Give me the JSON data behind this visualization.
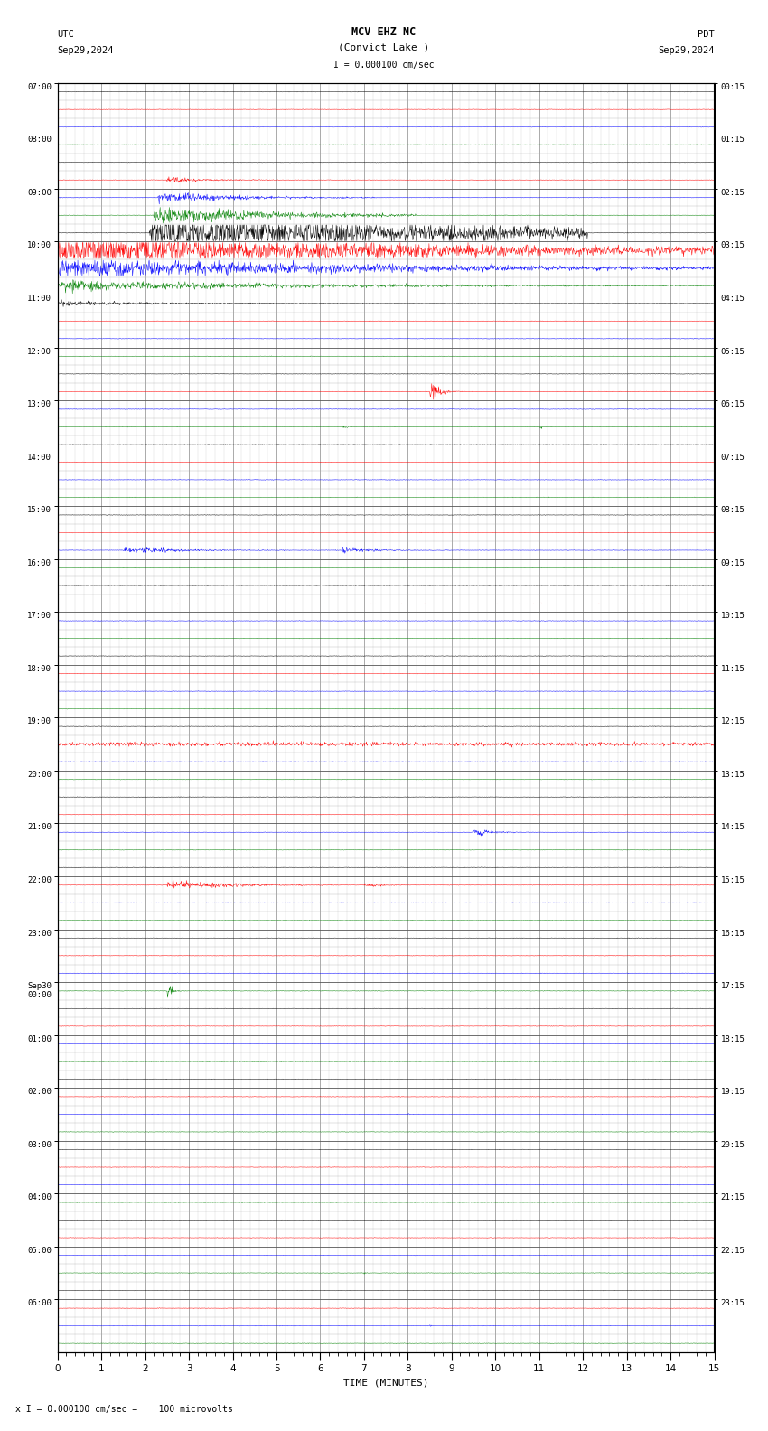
{
  "title_line1": "MCV EHZ NC",
  "title_line2": "(Convict Lake )",
  "scale_label": "I = 0.000100 cm/sec",
  "utc_label": "UTC",
  "pdt_label": "PDT",
  "date_left": "Sep29,2024",
  "date_right": "Sep29,2024",
  "xlabel": "TIME (MINUTES)",
  "bottom_note": "x I = 0.000100 cm/sec =    100 microvolts",
  "bg_color": "#ffffff",
  "figsize": [
    8.5,
    15.84
  ],
  "dpi": 100,
  "utc_labels": [
    "07:00",
    "08:00",
    "09:00",
    "10:00",
    "11:00",
    "12:00",
    "13:00",
    "14:00",
    "15:00",
    "16:00",
    "17:00",
    "18:00",
    "19:00",
    "20:00",
    "21:00",
    "22:00",
    "23:00",
    "Sep30\n00:00",
    "01:00",
    "02:00",
    "03:00",
    "04:00",
    "05:00",
    "06:00"
  ],
  "pdt_labels": [
    "00:15",
    "01:15",
    "02:15",
    "03:15",
    "04:15",
    "05:15",
    "06:15",
    "07:15",
    "08:15",
    "09:15",
    "10:15",
    "11:15",
    "12:15",
    "13:15",
    "14:15",
    "15:15",
    "16:15",
    "17:15",
    "18:15",
    "19:15",
    "20:15",
    "21:15",
    "22:15",
    "23:15"
  ]
}
